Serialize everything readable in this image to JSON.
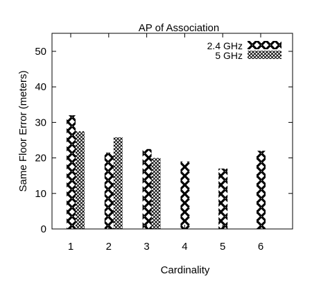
{
  "chart_data": {
    "type": "bar",
    "title": "AP of Association",
    "xlabel": "Cardinality",
    "ylabel": "Same Floor Error (meters)",
    "categories": [
      "1",
      "2",
      "3",
      "4",
      "5",
      "6"
    ],
    "ylim": [
      0,
      55
    ],
    "yticks": [
      0,
      10,
      20,
      30,
      40,
      50
    ],
    "grid": false,
    "legend_position": "top-right",
    "series": [
      {
        "name": "2.4 GHz",
        "pattern": "large-x-hatch",
        "values": [
          32,
          21.5,
          22.5,
          19,
          17,
          22
        ]
      },
      {
        "name": "5 GHz",
        "pattern": "fine-crosshatch",
        "values": [
          27.5,
          25.8,
          20,
          null,
          null,
          null
        ]
      }
    ]
  }
}
